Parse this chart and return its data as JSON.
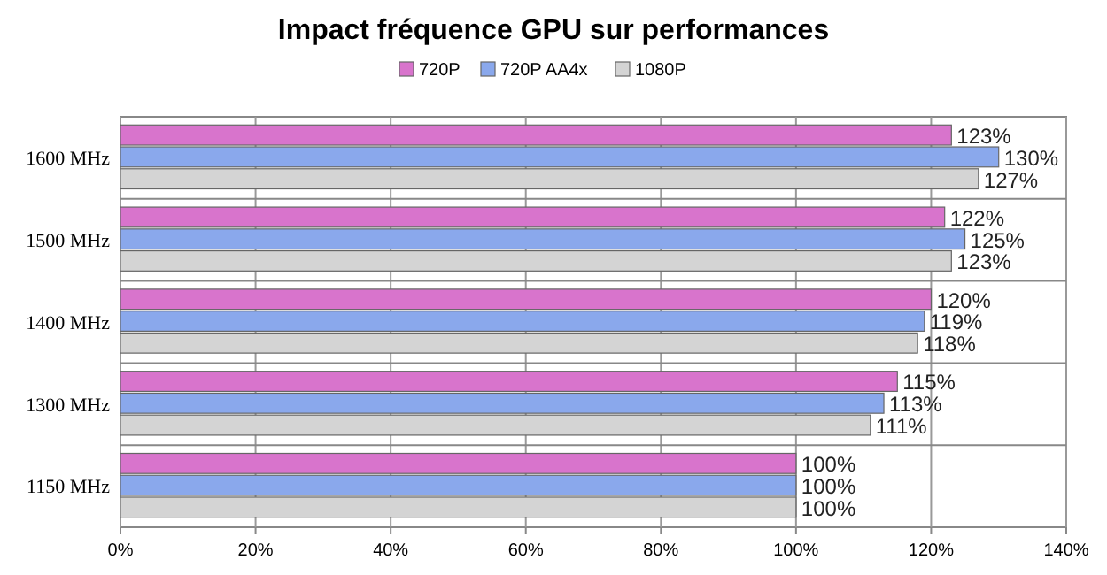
{
  "chart_data": {
    "type": "bar",
    "orientation": "horizontal",
    "title": "Impact fréquence GPU sur performances",
    "categories": [
      "1600 MHz",
      "1500 MHz",
      "1400 MHz",
      "1300 MHz",
      "1150 MHz"
    ],
    "series": [
      {
        "name": "720P",
        "color": "#d874cc",
        "values": [
          123,
          122,
          120,
          115,
          100
        ],
        "value_labels": [
          "123%",
          "122%",
          "120%",
          "115%",
          "100%"
        ]
      },
      {
        "name": "720P AA4x",
        "color": "#8aa8ec",
        "values": [
          130,
          125,
          119,
          113,
          100
        ],
        "value_labels": [
          "130%",
          "125%",
          "119%",
          "113%",
          "100%"
        ]
      },
      {
        "name": "1080P",
        "color": "#d4d4d4",
        "values": [
          127,
          123,
          118,
          111,
          100
        ],
        "value_labels": [
          "127%",
          "123%",
          "118%",
          "111%",
          "100%"
        ]
      }
    ],
    "xlim": [
      0,
      140
    ],
    "xticks": [
      {
        "value": 0,
        "label": "0%"
      },
      {
        "value": 20,
        "label": "20%"
      },
      {
        "value": 40,
        "label": "40%"
      },
      {
        "value": 60,
        "label": "60%"
      },
      {
        "value": 80,
        "label": "80%"
      },
      {
        "value": 100,
        "label": "100%"
      },
      {
        "value": 120,
        "label": "120%"
      },
      {
        "value": 140,
        "label": "140%"
      }
    ],
    "grid": "x",
    "legend": "top"
  }
}
